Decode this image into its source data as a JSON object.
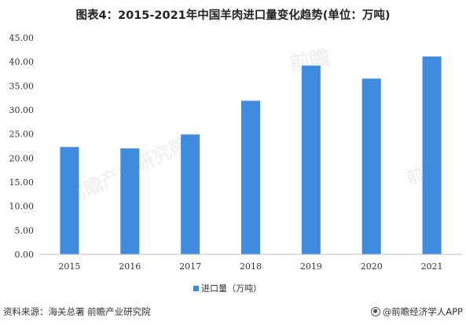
{
  "title": "图表4：2015-2021年中国羊肉进口量变化趋势(单位：万吨)",
  "footer": {
    "source": "资料来源：海关总署 前瞻产业研究院",
    "brand": "@前瞻经济学人APP",
    "brand_icon": "qianzhan-logo-icon"
  },
  "colors": {
    "bar": "#3e8be0",
    "axis": "#bfbfbf",
    "text": "#333333"
  },
  "chart_data": {
    "type": "bar",
    "title": "图表4：2015-2021年中国羊肉进口量变化趋势(单位：万吨)",
    "categories": [
      "2015",
      "2016",
      "2017",
      "2018",
      "2019",
      "2020",
      "2021"
    ],
    "series": [
      {
        "name": "进口量（万吨）",
        "values": [
          22.3,
          22.0,
          24.9,
          31.9,
          39.2,
          36.5,
          41.1
        ]
      }
    ],
    "ylim": [
      0,
      45
    ],
    "yticks": [
      "0.00",
      "5.00",
      "10.00",
      "15.00",
      "20.00",
      "25.00",
      "30.00",
      "35.00",
      "40.00",
      "45.00"
    ],
    "grid": false,
    "legend": "bottom"
  }
}
